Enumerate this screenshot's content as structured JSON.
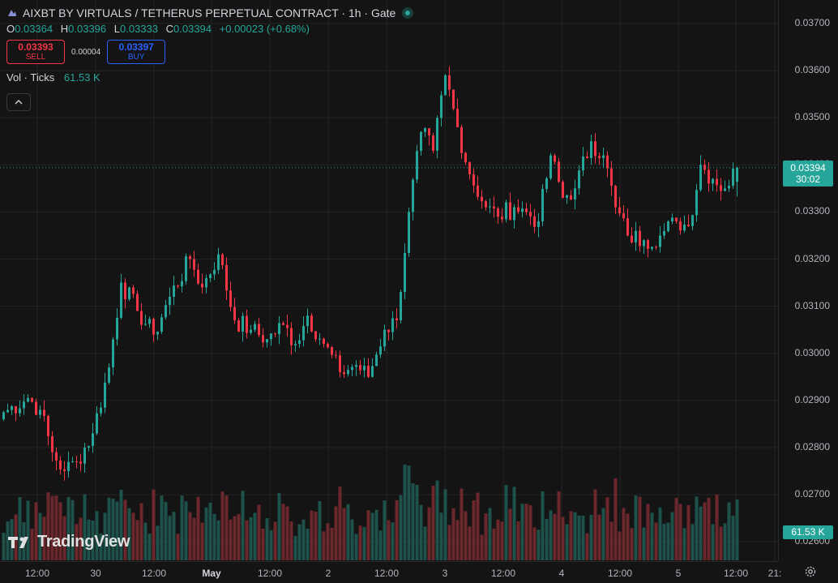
{
  "header": {
    "title": "AIXBT BY VIRTUALS / TETHERUS PERPETUAL CONTRACT · 1h · Gate",
    "ohlc": {
      "o_label": "O",
      "o": "0.03364",
      "h_label": "H",
      "h": "0.03396",
      "l_label": "L",
      "l": "0.03333",
      "c_label": "C",
      "c": "0.03394",
      "change": "+0.00023 (+0.68%)"
    }
  },
  "trade": {
    "sell_price": "0.03393",
    "sell_label": "SELL",
    "spread": "0.00004",
    "buy_price": "0.03397",
    "buy_label": "BUY"
  },
  "volume": {
    "label": "Vol · Ticks",
    "value": "61.53 K"
  },
  "price_axis": {
    "labels": [
      "0.03700",
      "0.03600",
      "0.03500",
      "0.03400",
      "0.03300",
      "0.03200",
      "0.03100",
      "0.03000",
      "0.02900",
      "0.02800",
      "0.02700",
      "0.02600"
    ],
    "current_price": "0.03394",
    "countdown": "30:02",
    "volume_badge": "61.53 K"
  },
  "time_axis": {
    "labels": [
      {
        "text": "12:00",
        "bold": false
      },
      {
        "text": "30",
        "bold": false
      },
      {
        "text": "12:00",
        "bold": false
      },
      {
        "text": "May",
        "bold": true
      },
      {
        "text": "12:00",
        "bold": false
      },
      {
        "text": "2",
        "bold": false
      },
      {
        "text": "12:00",
        "bold": false
      },
      {
        "text": "3",
        "bold": false
      },
      {
        "text": "12:00",
        "bold": false
      },
      {
        "text": "4",
        "bold": false
      },
      {
        "text": "12:00",
        "bold": false
      },
      {
        "text": "5",
        "bold": false
      },
      {
        "text": "12:00",
        "bold": false
      },
      {
        "text": "21:",
        "bold": false
      }
    ]
  },
  "watermark": "TradingView",
  "colors": {
    "up": "#26a69a",
    "down": "#f23645",
    "background": "#141414",
    "grid": "#232323"
  },
  "chart_data": {
    "type": "candlestick",
    "interval": "1h",
    "ylim": [
      0.0265,
      0.0372
    ],
    "anchors": [
      [
        0,
        0.02875
      ],
      [
        6,
        0.02905
      ],
      [
        9,
        0.0288
      ],
      [
        12,
        0.0279
      ],
      [
        15,
        0.0275
      ],
      [
        18,
        0.0277
      ],
      [
        22,
        0.0283
      ],
      [
        26,
        0.0297
      ],
      [
        29,
        0.0315
      ],
      [
        33,
        0.0309
      ],
      [
        37,
        0.0304
      ],
      [
        41,
        0.0312
      ],
      [
        46,
        0.032
      ],
      [
        49,
        0.0314
      ],
      [
        53,
        0.0321
      ],
      [
        57,
        0.0307
      ],
      [
        61,
        0.0305
      ],
      [
        65,
        0.0303
      ],
      [
        69,
        0.0306
      ],
      [
        72,
        0.0302
      ],
      [
        75,
        0.0308
      ],
      [
        79,
        0.0302
      ],
      [
        83,
        0.0296
      ],
      [
        87,
        0.02975
      ],
      [
        90,
        0.0295
      ],
      [
        94,
        0.0305
      ],
      [
        97,
        0.0307
      ],
      [
        100,
        0.033
      ],
      [
        103,
        0.0347
      ],
      [
        106,
        0.0343
      ],
      [
        109,
        0.0359
      ],
      [
        112,
        0.0348
      ],
      [
        115,
        0.0338
      ],
      [
        119,
        0.0331
      ],
      [
        122,
        0.0329
      ],
      [
        126,
        0.0331
      ],
      [
        129,
        0.033
      ],
      [
        132,
        0.0328
      ],
      [
        135,
        0.0342
      ],
      [
        138,
        0.0333
      ],
      [
        141,
        0.0335
      ],
      [
        145,
        0.0345
      ],
      [
        148,
        0.0342
      ],
      [
        151,
        0.0331
      ],
      [
        154,
        0.0325
      ],
      [
        158,
        0.0324
      ],
      [
        162,
        0.0325
      ],
      [
        166,
        0.0328
      ],
      [
        169,
        0.0327
      ],
      [
        172,
        0.034
      ],
      [
        175,
        0.0337
      ],
      [
        178,
        0.0335
      ],
      [
        181,
        0.03394
      ]
    ]
  }
}
